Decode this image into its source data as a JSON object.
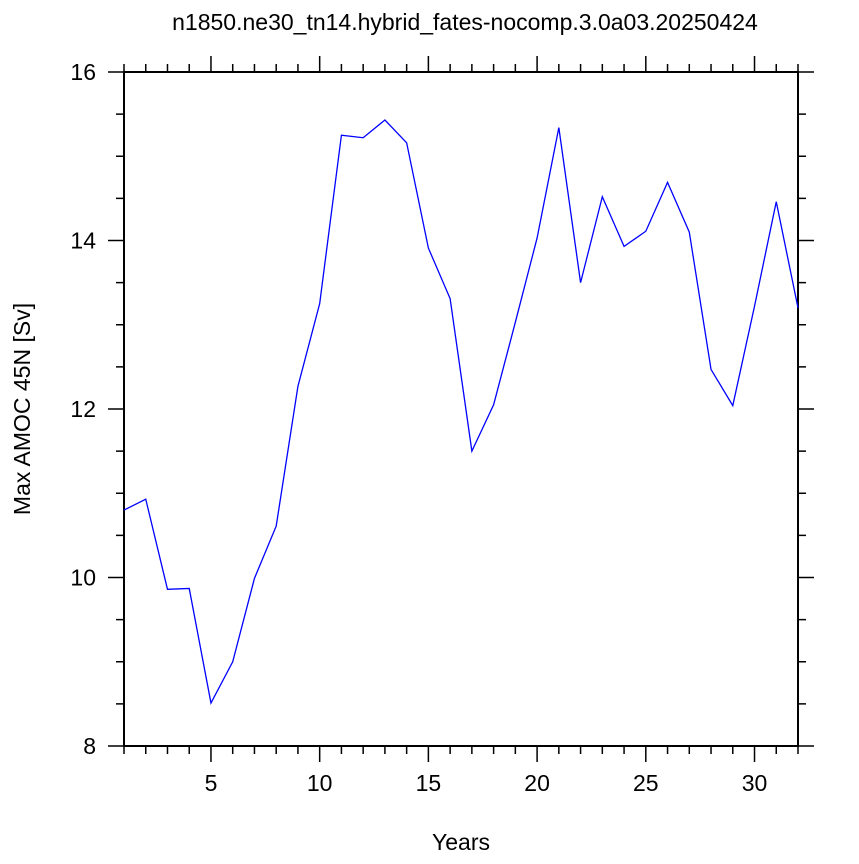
{
  "chart_data": {
    "type": "line",
    "title": "n1850.ne30_tn14.hybrid_fates-nocomp.3.0a03.20250424",
    "x_label": "Years",
    "y_label": "Max AMOC 45N [Sv]",
    "x": [
      1,
      2,
      3,
      4,
      5,
      6,
      7,
      8,
      9,
      10,
      11,
      12,
      13,
      14,
      15,
      16,
      17,
      18,
      19,
      20,
      21,
      22,
      23,
      24,
      25,
      26,
      27,
      28,
      29,
      30,
      31,
      32
    ],
    "series": [
      {
        "color": "#0000ff",
        "values": [
          10.8,
          10.93,
          9.86,
          9.87,
          8.51,
          9.0,
          9.99,
          10.61,
          12.27,
          13.25,
          15.25,
          15.22,
          15.43,
          15.16,
          13.91,
          13.31,
          11.5,
          12.05,
          13.03,
          14.03,
          15.34,
          13.5,
          14.52,
          13.93,
          14.11,
          14.69,
          14.1,
          12.47,
          12.04,
          13.22,
          14.46,
          13.2
        ]
      }
    ],
    "xlim": [
      1,
      32
    ],
    "ylim": [
      8,
      16
    ],
    "xticks": [
      5,
      10,
      15,
      20,
      25,
      30
    ],
    "yticks": [
      8,
      10,
      12,
      14,
      16
    ],
    "xminorticks": [
      1,
      2,
      3,
      4,
      6,
      7,
      8,
      9,
      11,
      12,
      13,
      14,
      16,
      17,
      18,
      19,
      21,
      22,
      23,
      24,
      26,
      27,
      28,
      29,
      31,
      32
    ],
    "yminorticks": [
      8.5,
      9,
      9.5,
      10.5,
      11,
      11.5,
      12.5,
      13,
      13.5,
      14.5,
      15,
      15.5
    ],
    "grid": false
  }
}
